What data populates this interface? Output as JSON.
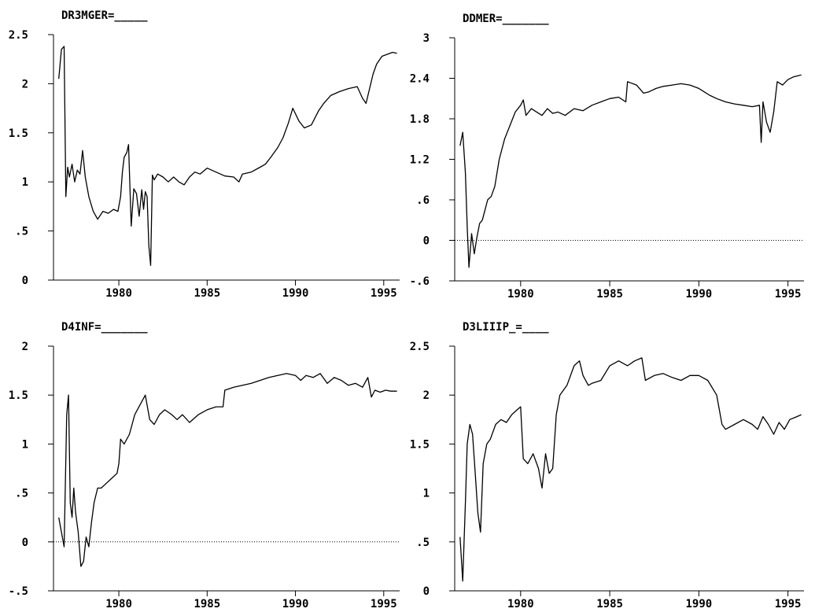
{
  "chart_data": [
    {
      "type": "line",
      "title": "DR3MGER=_____",
      "xlabel": "",
      "ylabel": "",
      "xlim": [
        1976.3,
        1995.9
      ],
      "ylim": [
        0,
        2.5
      ],
      "yticks": [
        "0",
        ".5",
        "1",
        "1.5",
        "2",
        "2.5"
      ],
      "ytick_values": [
        0,
        0.5,
        1,
        1.5,
        2,
        2.5
      ],
      "xticks": [
        "1980",
        "1985",
        "1990",
        "1995"
      ],
      "xtick_values": [
        1980,
        1985,
        1990,
        1995
      ],
      "zero_line": false,
      "grid": false,
      "series": [
        {
          "x": [
            1976.6,
            1976.75,
            1976.9,
            1977.0,
            1977.1,
            1977.2,
            1977.35,
            1977.5,
            1977.65,
            1977.8,
            1977.95,
            1978.1,
            1978.3,
            1978.55,
            1978.8,
            1979.1,
            1979.4,
            1979.7,
            1979.95,
            1980.1,
            1980.2,
            1980.3,
            1980.45,
            1980.55,
            1980.7,
            1980.85,
            1981.0,
            1981.15,
            1981.3,
            1981.4,
            1981.5,
            1981.6,
            1981.7,
            1981.8,
            1981.9,
            1982.0,
            1982.2,
            1982.5,
            1982.8,
            1983.1,
            1983.4,
            1983.7,
            1984.0,
            1984.3,
            1984.6,
            1985.0,
            1985.5,
            1986.0,
            1986.5,
            1986.8,
            1987.0,
            1987.5,
            1988.0,
            1988.3,
            1988.6,
            1989.0,
            1989.3,
            1989.6,
            1989.85,
            1990.2,
            1990.5,
            1990.9,
            1991.3,
            1991.6,
            1992.0,
            1992.5,
            1993.0,
            1993.5,
            1993.8,
            1994.0,
            1994.2,
            1994.4,
            1994.6,
            1994.9,
            1995.2,
            1995.5,
            1995.75
          ],
          "y": [
            2.05,
            2.35,
            2.38,
            0.85,
            1.15,
            1.05,
            1.18,
            1.0,
            1.12,
            1.08,
            1.32,
            1.05,
            0.85,
            0.7,
            0.62,
            0.7,
            0.68,
            0.72,
            0.7,
            0.85,
            1.1,
            1.25,
            1.3,
            1.38,
            0.55,
            0.93,
            0.88,
            0.65,
            0.92,
            0.72,
            0.9,
            0.85,
            0.35,
            0.15,
            1.07,
            1.02,
            1.08,
            1.05,
            1.0,
            1.05,
            1.0,
            0.97,
            1.05,
            1.1,
            1.08,
            1.14,
            1.1,
            1.06,
            1.05,
            1.0,
            1.08,
            1.1,
            1.15,
            1.18,
            1.25,
            1.35,
            1.45,
            1.6,
            1.75,
            1.62,
            1.55,
            1.58,
            1.72,
            1.8,
            1.88,
            1.92,
            1.95,
            1.97,
            1.85,
            1.8,
            1.95,
            2.1,
            2.2,
            2.28,
            2.3,
            2.32,
            2.31
          ]
        }
      ]
    },
    {
      "type": "line",
      "title": "DDMER=_______",
      "xlabel": "",
      "ylabel": "",
      "xlim": [
        1976.3,
        1995.9
      ],
      "ylim": [
        -0.6,
        3
      ],
      "yticks": [
        "-.6",
        "0",
        ".6",
        "1.2",
        "1.8",
        "2.4",
        "3"
      ],
      "ytick_values": [
        -0.6,
        0,
        0.6,
        1.2,
        1.8,
        2.4,
        3
      ],
      "xticks": [
        "1980",
        "1985",
        "1990",
        "1995"
      ],
      "xtick_values": [
        1980,
        1985,
        1990,
        1995
      ],
      "zero_line": true,
      "grid": false,
      "series": [
        {
          "x": [
            1976.6,
            1976.75,
            1976.9,
            1977.0,
            1977.1,
            1977.25,
            1977.4,
            1977.55,
            1977.7,
            1977.85,
            1978.0,
            1978.15,
            1978.35,
            1978.55,
            1978.8,
            1979.1,
            1979.4,
            1979.7,
            1980.0,
            1980.15,
            1980.3,
            1980.6,
            1980.9,
            1981.2,
            1981.5,
            1981.8,
            1982.1,
            1982.5,
            1983.0,
            1983.5,
            1984.0,
            1984.5,
            1985.0,
            1985.5,
            1985.9,
            1986.0,
            1986.5,
            1986.9,
            1987.2,
            1987.6,
            1988.0,
            1988.5,
            1989.0,
            1989.5,
            1990.0,
            1990.3,
            1990.6,
            1991.0,
            1991.5,
            1992.0,
            1992.5,
            1993.0,
            1993.4,
            1993.5,
            1993.6,
            1993.8,
            1994.0,
            1994.2,
            1994.4,
            1994.7,
            1995.0,
            1995.3,
            1995.6,
            1995.75
          ],
          "y": [
            1.4,
            1.6,
            1.0,
            0.2,
            -0.4,
            0.1,
            -0.2,
            0.05,
            0.25,
            0.3,
            0.45,
            0.6,
            0.65,
            0.8,
            1.2,
            1.5,
            1.7,
            1.9,
            2.0,
            2.08,
            1.85,
            1.95,
            1.9,
            1.85,
            1.95,
            1.88,
            1.9,
            1.85,
            1.95,
            1.92,
            2.0,
            2.05,
            2.1,
            2.12,
            2.05,
            2.35,
            2.3,
            2.18,
            2.2,
            2.25,
            2.28,
            2.3,
            2.32,
            2.3,
            2.25,
            2.2,
            2.15,
            2.1,
            2.05,
            2.02,
            2.0,
            1.98,
            2.0,
            1.45,
            2.05,
            1.75,
            1.6,
            1.9,
            2.35,
            2.3,
            2.38,
            2.42,
            2.44,
            2.45
          ]
        }
      ]
    },
    {
      "type": "line",
      "title": "D4INF=_______",
      "xlabel": "",
      "ylabel": "",
      "xlim": [
        1976.3,
        1995.9
      ],
      "ylim": [
        -0.5,
        2
      ],
      "yticks": [
        "-.5",
        "0",
        ".5",
        "1",
        "1.5",
        "2"
      ],
      "ytick_values": [
        -0.5,
        0,
        0.5,
        1,
        1.5,
        2
      ],
      "xticks": [
        "1980",
        "1985",
        "1990",
        "1995"
      ],
      "xtick_values": [
        1980,
        1985,
        1990,
        1995
      ],
      "zero_line": true,
      "grid": false,
      "series": [
        {
          "x": [
            1976.6,
            1976.75,
            1976.9,
            1977.05,
            1977.15,
            1977.25,
            1977.35,
            1977.45,
            1977.55,
            1977.7,
            1977.85,
            1978.0,
            1978.15,
            1978.3,
            1978.45,
            1978.6,
            1978.8,
            1979.0,
            1979.3,
            1979.6,
            1979.9,
            1980.0,
            1980.1,
            1980.3,
            1980.6,
            1980.9,
            1981.2,
            1981.5,
            1981.75,
            1982.0,
            1982.3,
            1982.6,
            1983.0,
            1983.3,
            1983.6,
            1984.0,
            1984.5,
            1985.0,
            1985.5,
            1985.9,
            1986.0,
            1986.5,
            1987.0,
            1987.5,
            1988.0,
            1988.5,
            1989.0,
            1989.5,
            1990.0,
            1990.3,
            1990.6,
            1991.0,
            1991.4,
            1991.8,
            1992.2,
            1992.6,
            1993.0,
            1993.4,
            1993.8,
            1994.1,
            1994.3,
            1994.5,
            1994.8,
            1995.1,
            1995.4,
            1995.75
          ],
          "y": [
            0.25,
            0.1,
            -0.05,
            1.3,
            1.5,
            0.4,
            0.25,
            0.55,
            0.3,
            0.1,
            -0.25,
            -0.2,
            0.05,
            -0.05,
            0.2,
            0.4,
            0.55,
            0.55,
            0.6,
            0.65,
            0.7,
            0.8,
            1.05,
            1.0,
            1.1,
            1.3,
            1.4,
            1.5,
            1.25,
            1.2,
            1.3,
            1.35,
            1.3,
            1.25,
            1.3,
            1.22,
            1.3,
            1.35,
            1.38,
            1.38,
            1.55,
            1.58,
            1.6,
            1.62,
            1.65,
            1.68,
            1.7,
            1.72,
            1.7,
            1.65,
            1.7,
            1.68,
            1.72,
            1.62,
            1.68,
            1.65,
            1.6,
            1.62,
            1.58,
            1.68,
            1.48,
            1.55,
            1.53,
            1.55,
            1.54,
            1.54
          ]
        }
      ]
    },
    {
      "type": "line",
      "title": "D3LIIIP_=____",
      "xlabel": "",
      "ylabel": "",
      "xlim": [
        1976.3,
        1995.9
      ],
      "ylim": [
        0,
        2.5
      ],
      "yticks": [
        "0",
        ".5",
        "1",
        "1.5",
        "2",
        "2.5"
      ],
      "ytick_values": [
        0,
        0.5,
        1,
        1.5,
        2,
        2.5
      ],
      "xticks": [
        "1980",
        "1985",
        "1990",
        "1995"
      ],
      "xtick_values": [
        1980,
        1985,
        1990,
        1995
      ],
      "zero_line": false,
      "grid": false,
      "series": [
        {
          "x": [
            1976.6,
            1976.75,
            1976.9,
            1977.0,
            1977.15,
            1977.3,
            1977.45,
            1977.6,
            1977.75,
            1977.9,
            1978.1,
            1978.3,
            1978.6,
            1978.9,
            1979.2,
            1979.5,
            1979.8,
            1980.0,
            1980.15,
            1980.4,
            1980.7,
            1981.0,
            1981.2,
            1981.4,
            1981.6,
            1981.8,
            1982.0,
            1982.2,
            1982.6,
            1983.0,
            1983.3,
            1983.5,
            1983.8,
            1984.0,
            1984.5,
            1985.0,
            1985.5,
            1986.0,
            1986.4,
            1986.8,
            1987.0,
            1987.5,
            1988.0,
            1988.5,
            1989.0,
            1989.5,
            1990.0,
            1990.5,
            1991.0,
            1991.3,
            1991.5,
            1992.0,
            1992.5,
            1993.0,
            1993.3,
            1993.6,
            1993.9,
            1994.2,
            1994.5,
            1994.8,
            1995.1,
            1995.5,
            1995.75
          ],
          "y": [
            0.55,
            0.1,
            0.9,
            1.5,
            1.7,
            1.6,
            1.2,
            0.8,
            0.6,
            1.3,
            1.5,
            1.55,
            1.7,
            1.75,
            1.72,
            1.8,
            1.85,
            1.88,
            1.35,
            1.3,
            1.4,
            1.25,
            1.05,
            1.4,
            1.2,
            1.25,
            1.8,
            2.0,
            2.1,
            2.3,
            2.35,
            2.2,
            2.1,
            2.12,
            2.15,
            2.3,
            2.35,
            2.3,
            2.35,
            2.38,
            2.15,
            2.2,
            2.22,
            2.18,
            2.15,
            2.2,
            2.2,
            2.15,
            2.0,
            1.7,
            1.65,
            1.7,
            1.75,
            1.7,
            1.65,
            1.78,
            1.7,
            1.6,
            1.72,
            1.65,
            1.75,
            1.78,
            1.8
          ]
        }
      ]
    }
  ]
}
